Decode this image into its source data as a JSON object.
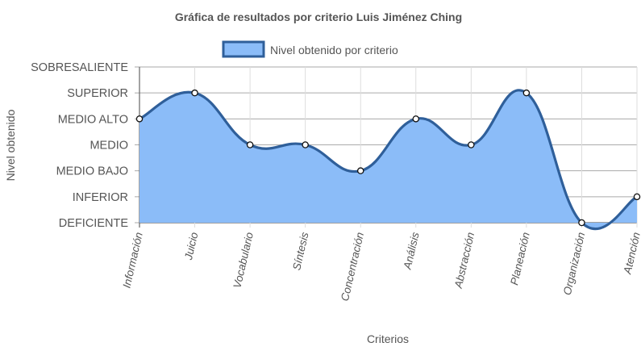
{
  "chart_data": {
    "type": "area",
    "title": "Gráfica de resultados por criterio Luis Jiménez Ching",
    "xlabel": "Criterios",
    "ylabel": "Nivel obtenido",
    "categories": [
      "Información",
      "Juicio",
      "Vocabulario",
      "Síntesis",
      "Concentración",
      "Análisis",
      "Abstracción",
      "Planeación",
      "Organización",
      "Atención"
    ],
    "y_levels": [
      "DEFICIENTE",
      "INFERIOR",
      "MEDIO BAJO",
      "MEDIO",
      "MEDIO ALTO",
      "SUPERIOR",
      "SOBRESALIENTE"
    ],
    "ylim": [
      0,
      6
    ],
    "grid": true,
    "legend_position": "top-center",
    "series": [
      {
        "name": "Nivel obtenido por criterio",
        "values": [
          4,
          5,
          3,
          3,
          2,
          4,
          3,
          5,
          0,
          1
        ],
        "line_color": "#2f5f9a",
        "fill_color": "#8bbcf8"
      }
    ]
  }
}
